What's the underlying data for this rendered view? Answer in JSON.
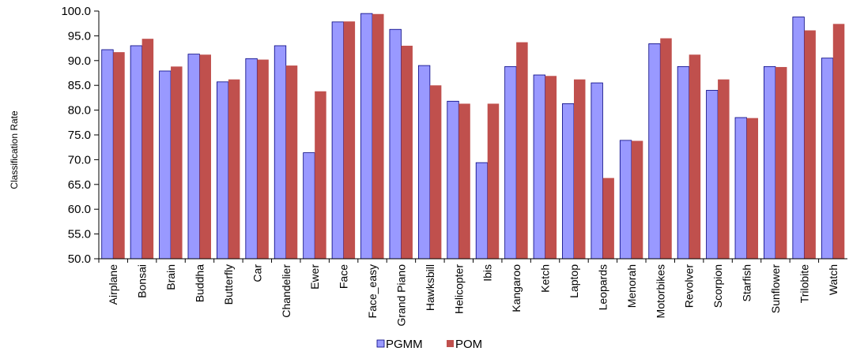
{
  "chart_data": {
    "type": "bar",
    "title": "",
    "xlabel": "",
    "ylabel": "Classification Rate",
    "ylim": [
      50,
      100
    ],
    "yticks": [
      "50.0",
      "55.0",
      "60.0",
      "65.0",
      "70.0",
      "75.0",
      "80.0",
      "85.0",
      "90.0",
      "95.0",
      "100.0"
    ],
    "grid": false,
    "legend_position": "bottom",
    "categories": [
      "Airplane",
      "Bonsai",
      "Brain",
      "Buddha",
      "Butterfly",
      "Car",
      "Chandelier",
      "Ewer",
      "Face",
      "Face_easy",
      "Grand Piano",
      "Hawksbill",
      "Helicopter",
      "Ibis",
      "Kangaroo",
      "Ketch",
      "Laptop",
      "Leopards",
      "Menorah",
      "Motorbikes",
      "Revolver",
      "Scorpion",
      "Starfish",
      "Sunflower",
      "Trilobite",
      "Watch"
    ],
    "series": [
      {
        "name": "PGMM",
        "color": "#9999ff",
        "values": [
          92.2,
          93.0,
          87.9,
          91.3,
          85.7,
          90.4,
          93.0,
          71.4,
          97.8,
          99.5,
          96.3,
          89.0,
          81.8,
          69.4,
          88.8,
          87.1,
          81.3,
          85.5,
          73.9,
          93.4,
          88.8,
          84.0,
          78.5,
          88.8,
          98.8,
          90.5
        ]
      },
      {
        "name": "POM",
        "color": "#c0504d",
        "values": [
          91.7,
          94.4,
          88.8,
          91.2,
          86.2,
          90.2,
          89.0,
          83.8,
          97.9,
          99.4,
          93.0,
          85.0,
          81.3,
          81.3,
          93.7,
          86.9,
          86.2,
          66.3,
          73.8,
          94.5,
          91.2,
          86.2,
          78.4,
          88.7,
          96.1,
          97.4
        ]
      }
    ]
  }
}
